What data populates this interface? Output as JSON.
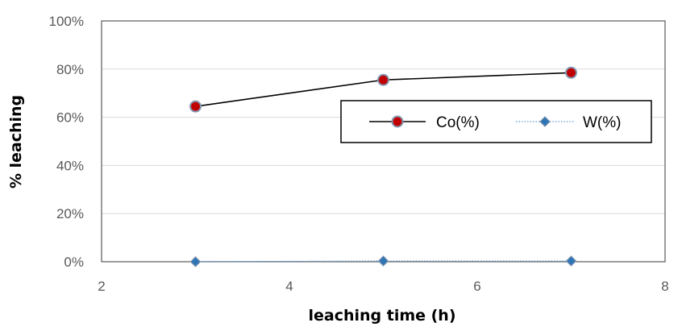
{
  "chart_data": {
    "type": "line",
    "title": "",
    "xlabel": "leaching  time (h)",
    "ylabel": "% leaching",
    "xlim": [
      2,
      8
    ],
    "ylim": [
      0,
      1
    ],
    "x_ticks": [
      "2",
      "4",
      "6",
      "8"
    ],
    "y_ticks": [
      "0%",
      "20%",
      "40%",
      "60%",
      "80%",
      "100%"
    ],
    "grid": "horizontal",
    "legend_position": "right",
    "series": [
      {
        "name": "Co(%)",
        "x": [
          3,
          5,
          7
        ],
        "values": [
          0.645,
          0.755,
          0.785
        ],
        "color": "#000000",
        "marker": "circle",
        "marker_fill": "#c00000",
        "marker_stroke": "#8497b0",
        "line_style": "solid"
      },
      {
        "name": "W(%)",
        "x": [
          3,
          5,
          7
        ],
        "values": [
          0.0,
          0.003,
          0.003
        ],
        "color": "#5b9bd5",
        "marker": "diamond",
        "marker_fill": "#2e75b6",
        "marker_stroke": "#8497b0",
        "line_style": "dotted"
      }
    ]
  }
}
